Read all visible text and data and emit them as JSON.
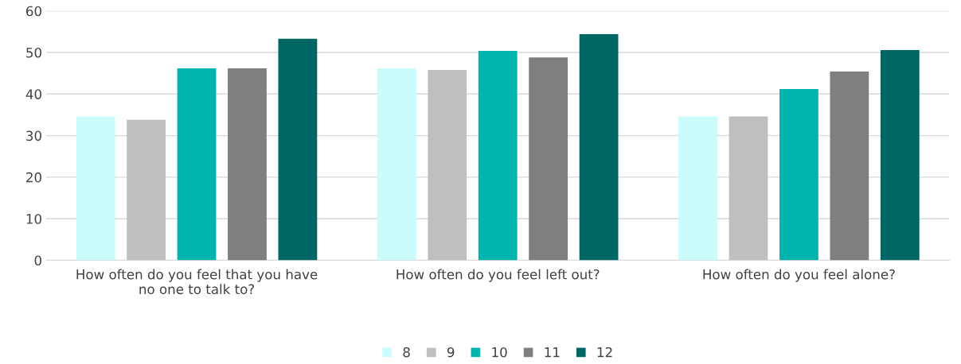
{
  "chart_data": {
    "type": "bar",
    "categories": [
      "How often do you feel that you have\nno one to talk to?",
      "How often do you feel left out?",
      "How often do you feel alone?"
    ],
    "series": [
      {
        "name": "8",
        "color": "#ccfbfb",
        "values": [
          34.6,
          46.2,
          34.6
        ]
      },
      {
        "name": "9",
        "color": "#bfbfbf",
        "values": [
          33.8,
          45.8,
          34.6
        ]
      },
      {
        "name": "10",
        "color": "#00b5b0",
        "values": [
          46.2,
          50.4,
          41.2
        ]
      },
      {
        "name": "11",
        "color": "#7f7f7f",
        "values": [
          46.2,
          48.8,
          45.4
        ]
      },
      {
        "name": "12",
        "color": "#006663",
        "values": [
          53.3,
          54.4,
          50.6
        ]
      }
    ],
    "ylim": [
      0,
      60
    ],
    "yticks": [
      0,
      10,
      20,
      30,
      40,
      50,
      60
    ],
    "grid": "y",
    "legend": "bottom"
  }
}
